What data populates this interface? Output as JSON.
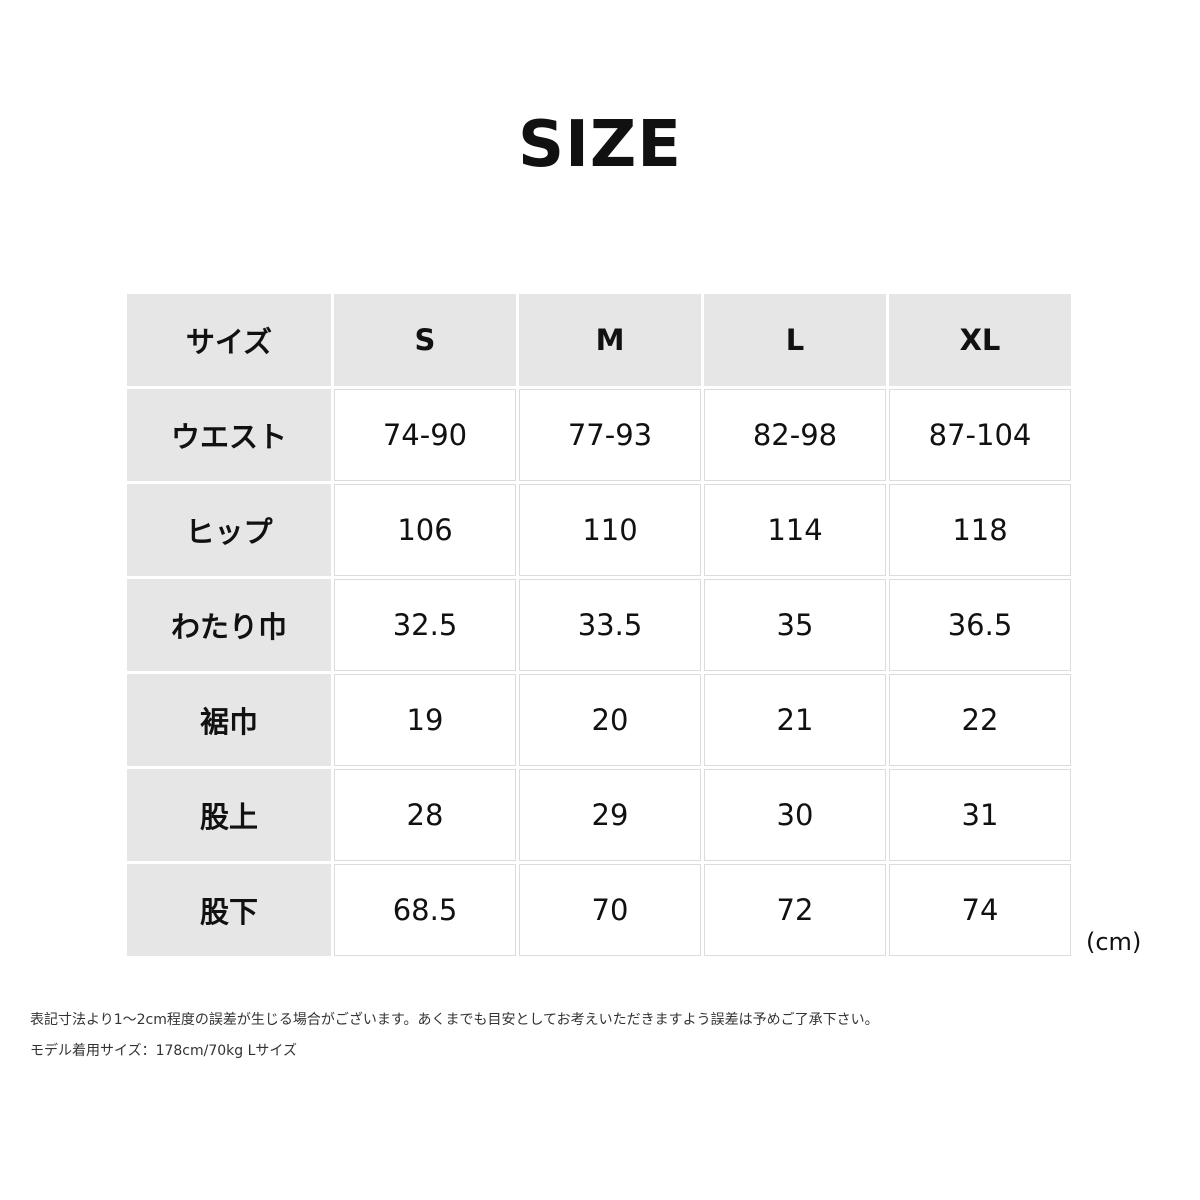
{
  "title": "SIZE",
  "table": {
    "headers": [
      "サイズ",
      "S",
      "M",
      "L",
      "XL"
    ],
    "rows": [
      {
        "label": "ウエスト",
        "values": [
          "74-90",
          "77-93",
          "82-98",
          "87-104"
        ]
      },
      {
        "label": "ヒップ",
        "values": [
          "106",
          "110",
          "114",
          "118"
        ]
      },
      {
        "label": "わたり巾",
        "values": [
          "32.5",
          "33.5",
          "35",
          "36.5"
        ]
      },
      {
        "label": "裾巾",
        "values": [
          "19",
          "20",
          "21",
          "22"
        ]
      },
      {
        "label": "股上",
        "values": [
          "28",
          "29",
          "30",
          "31"
        ]
      },
      {
        "label": "股下",
        "values": [
          "68.5",
          "70",
          "72",
          "74"
        ]
      }
    ]
  },
  "unit": "(cm)",
  "notes": [
    "表記寸法より1～2cm程度の誤差が生じる場合がございます。あくまでも目安としてお考えいただきますよう誤差は予めご了承下さい。",
    "モデル着用サイズ：178cm/70kg Lサイズ"
  ]
}
